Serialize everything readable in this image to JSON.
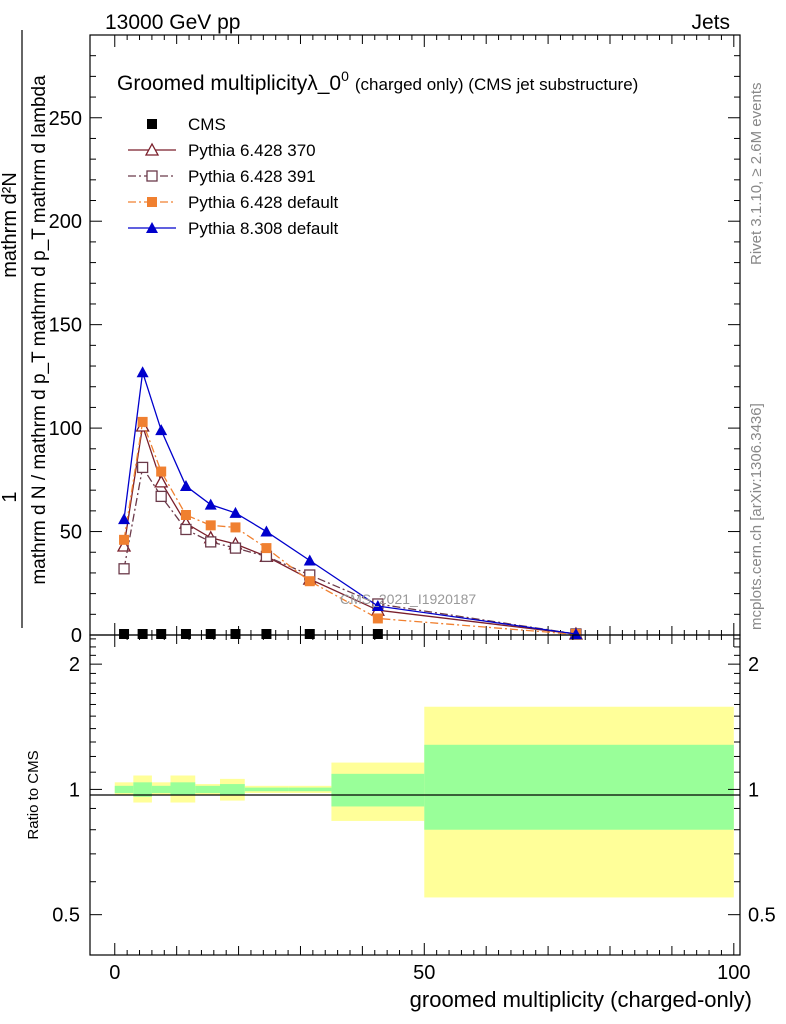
{
  "header": {
    "left": "13000 GeV pp",
    "right": "Jets",
    "side_top": "Rivet 3.1.10, ≥ 2.6M events",
    "side_bottom": "mcplots.cern.ch [arXiv:1306.3436]"
  },
  "chart_data": [
    {
      "type": "line",
      "title": "Groomed multiplicityλ_0",
      "title_superscript": "0",
      "subtitle": "(charged only) (CMS jet substructure)",
      "xlabel": "groomed multiplicity (charged-only)",
      "ylabel_top": "1",
      "ylabel_numerator": "mathrm d²N",
      "ylabel_denominator": "mathrm d N / mathrm d p_T mathrm d p_T mathrm d lambda",
      "xlim": [
        -4,
        101
      ],
      "ylim": [
        0,
        290
      ],
      "yticks": [
        0,
        50,
        100,
        150,
        200,
        250
      ],
      "xticks": [
        0,
        50,
        100
      ],
      "watermark": "CMS_2021_I1920187",
      "legend_position": "top-left",
      "x": [
        1.5,
        4.5,
        7.5,
        11.5,
        15.5,
        19.5,
        24.5,
        31.5,
        42.5,
        74.5
      ],
      "series": [
        {
          "name": "CMS",
          "marker": "square-filled",
          "color": "#000000",
          "values": [
            0,
            0,
            0,
            0,
            0,
            0,
            0,
            0,
            0,
            null
          ]
        },
        {
          "name": "Pythia 6.428 370",
          "marker": "triangle-open",
          "color": "#7a1f2b",
          "dash": "solid",
          "values": [
            43,
            101,
            74,
            54,
            47,
            44,
            38,
            27,
            12,
            0.5
          ]
        },
        {
          "name": "Pythia 6.428 391",
          "marker": "square-open",
          "color": "#6b3a4a",
          "dash": "dashdot",
          "values": [
            32,
            81,
            67,
            51,
            45,
            42,
            38,
            29,
            15,
            0.5
          ]
        },
        {
          "name": "Pythia 6.428 default",
          "marker": "square-filled",
          "color": "#f08030",
          "dash": "dashdot",
          "values": [
            46,
            103,
            79,
            58,
            53,
            52,
            42,
            26,
            8,
            0.3
          ]
        },
        {
          "name": "Pythia 8.308 default",
          "marker": "triangle-filled",
          "color": "#0000cc",
          "dash": "solid",
          "values": [
            56,
            127,
            99,
            72,
            63,
            59,
            50,
            36,
            14,
            0.5
          ]
        }
      ]
    },
    {
      "type": "area",
      "ylabel": "Ratio to CMS",
      "xlim": [
        -4,
        101
      ],
      "ylim": [
        0.4,
        2.35
      ],
      "yticks": [
        0.5,
        1,
        2
      ],
      "ytick_labels": [
        "0.5",
        "1",
        "2"
      ],
      "bins": [
        {
          "x0": 0,
          "x1": 3,
          "inner": [
            0.98,
            1.02
          ],
          "outer": [
            0.97,
            1.04
          ]
        },
        {
          "x0": 3,
          "x1": 6,
          "inner": [
            0.96,
            1.04
          ],
          "outer": [
            0.93,
            1.08
          ]
        },
        {
          "x0": 6,
          "x1": 9,
          "inner": [
            0.98,
            1.02
          ],
          "outer": [
            0.97,
            1.04
          ]
        },
        {
          "x0": 9,
          "x1": 13,
          "inner": [
            0.97,
            1.04
          ],
          "outer": [
            0.93,
            1.08
          ]
        },
        {
          "x0": 13,
          "x1": 17,
          "inner": [
            0.98,
            1.02
          ],
          "outer": [
            0.97,
            1.03
          ]
        },
        {
          "x0": 17,
          "x1": 21,
          "inner": [
            0.97,
            1.03
          ],
          "outer": [
            0.94,
            1.06
          ]
        },
        {
          "x0": 21,
          "x1": 28,
          "inner": [
            0.99,
            1.01
          ],
          "outer": [
            0.98,
            1.02
          ]
        },
        {
          "x0": 28,
          "x1": 35,
          "inner": [
            0.99,
            1.01
          ],
          "outer": [
            0.98,
            1.02
          ]
        },
        {
          "x0": 35,
          "x1": 50,
          "inner": [
            0.91,
            1.09
          ],
          "outer": [
            0.84,
            1.16
          ]
        },
        {
          "x0": 50,
          "x1": 100,
          "inner": [
            0.8,
            1.28
          ],
          "outer": [
            0.55,
            1.58
          ]
        }
      ],
      "colors": {
        "inner": "#99ff99",
        "outer": "#ffff99"
      }
    }
  ]
}
